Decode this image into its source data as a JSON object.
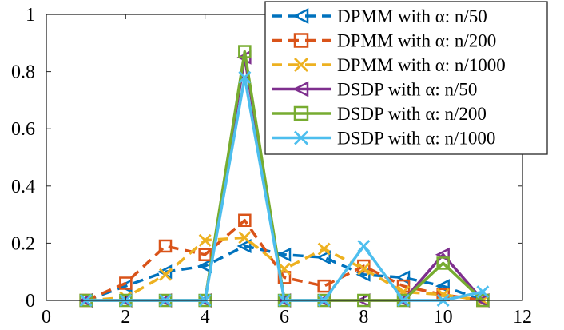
{
  "chart_data": {
    "type": "line",
    "title": "",
    "xlabel": "",
    "ylabel": "",
    "xlim": [
      0,
      12
    ],
    "ylim": [
      0,
      1
    ],
    "xticks": [
      0,
      2,
      4,
      6,
      8,
      10,
      12
    ],
    "yticks": [
      0,
      0.2,
      0.4,
      0.6,
      0.8,
      1
    ],
    "xtick_labels": [
      "0",
      "2",
      "4",
      "6",
      "8",
      "10",
      "12"
    ],
    "ytick_labels": [
      "0",
      "0.2",
      "0.4",
      "0.6",
      "0.8",
      "1"
    ],
    "grid": false,
    "legend_position": "top-right",
    "x": [
      1,
      2,
      3,
      4,
      5,
      6,
      7,
      8,
      9,
      10,
      11
    ],
    "series": [
      {
        "name": "DPMM with α: n/50",
        "color": "#0072BD",
        "style": "dashed",
        "marker": "triangle-left",
        "values": [
          0.0,
          0.05,
          0.1,
          0.12,
          0.19,
          0.16,
          0.15,
          0.09,
          0.08,
          0.05,
          0.0
        ]
      },
      {
        "name": "DPMM with α: n/200",
        "color": "#D95319",
        "style": "dashed",
        "marker": "square",
        "values": [
          0.0,
          0.06,
          0.19,
          0.16,
          0.28,
          0.08,
          0.05,
          0.12,
          0.05,
          0.02,
          0.0
        ]
      },
      {
        "name": "DPMM with α: n/1000",
        "color": "#EDB120",
        "style": "dashed",
        "marker": "x",
        "values": [
          0.0,
          0.01,
          0.09,
          0.21,
          0.22,
          0.11,
          0.18,
          0.11,
          0.03,
          0.02,
          0.0
        ]
      },
      {
        "name": "DSDP with α: n/50",
        "color": "#7E2F8E",
        "style": "solid",
        "marker": "triangle-left",
        "values": [
          0.0,
          0.0,
          0.0,
          0.0,
          0.85,
          0.0,
          0.0,
          0.0,
          0.0,
          0.16,
          0.0
        ]
      },
      {
        "name": "DSDP with α: n/200",
        "color": "#77AC30",
        "style": "solid",
        "marker": "square",
        "values": [
          0.0,
          0.0,
          0.0,
          0.0,
          0.87,
          0.0,
          0.0,
          0.0,
          0.0,
          0.13,
          0.0
        ]
      },
      {
        "name": "DSDP with α: n/1000",
        "color": "#4DBEEE",
        "style": "solid",
        "marker": "x",
        "values": [
          0.0,
          0.0,
          0.0,
          0.0,
          0.78,
          0.0,
          0.0,
          0.19,
          0.0,
          0.0,
          0.03
        ]
      }
    ]
  }
}
